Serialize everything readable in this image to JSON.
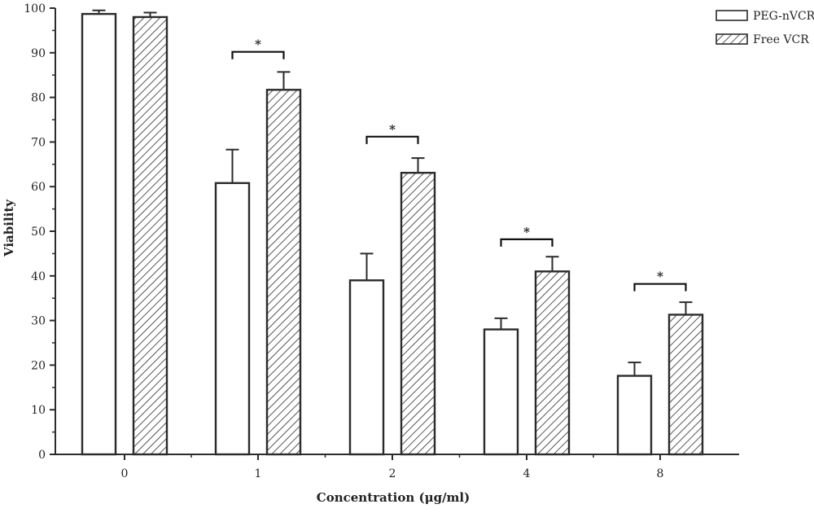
{
  "chart_data": {
    "type": "bar",
    "title": "",
    "xlabel": "Concentration (μg/ml)",
    "ylabel": "Viability",
    "ylim": [
      0,
      100
    ],
    "yticks": [
      "0",
      "10",
      "20",
      "30",
      "40",
      "50",
      "60",
      "70",
      "80",
      "90",
      "100"
    ],
    "categories": [
      "0",
      "1",
      "2",
      "4",
      "8"
    ],
    "legend_position": "top-right",
    "grid": false,
    "series": [
      {
        "name": "PEG-nVCR",
        "pattern": "open",
        "values": [
          98.7,
          60.8,
          39.0,
          28.0,
          17.6
        ],
        "errors": [
          0.8,
          7.5,
          6.0,
          2.5,
          3.0
        ]
      },
      {
        "name": "Free VCR",
        "pattern": "hatched",
        "values": [
          98.0,
          81.7,
          63.1,
          41.0,
          31.3
        ],
        "errors": [
          1.0,
          4.0,
          3.3,
          3.3,
          2.8
        ]
      }
    ],
    "significance": [
      {
        "category": "1",
        "label": "*",
        "level": 90.2
      },
      {
        "category": "2",
        "label": "*",
        "level": 71.2
      },
      {
        "category": "4",
        "label": "*",
        "level": 48.2
      },
      {
        "category": "8",
        "label": "*",
        "level": 38.2
      }
    ],
    "colors": {
      "edge": "#2b2b2b",
      "background": "#ffffff"
    }
  }
}
